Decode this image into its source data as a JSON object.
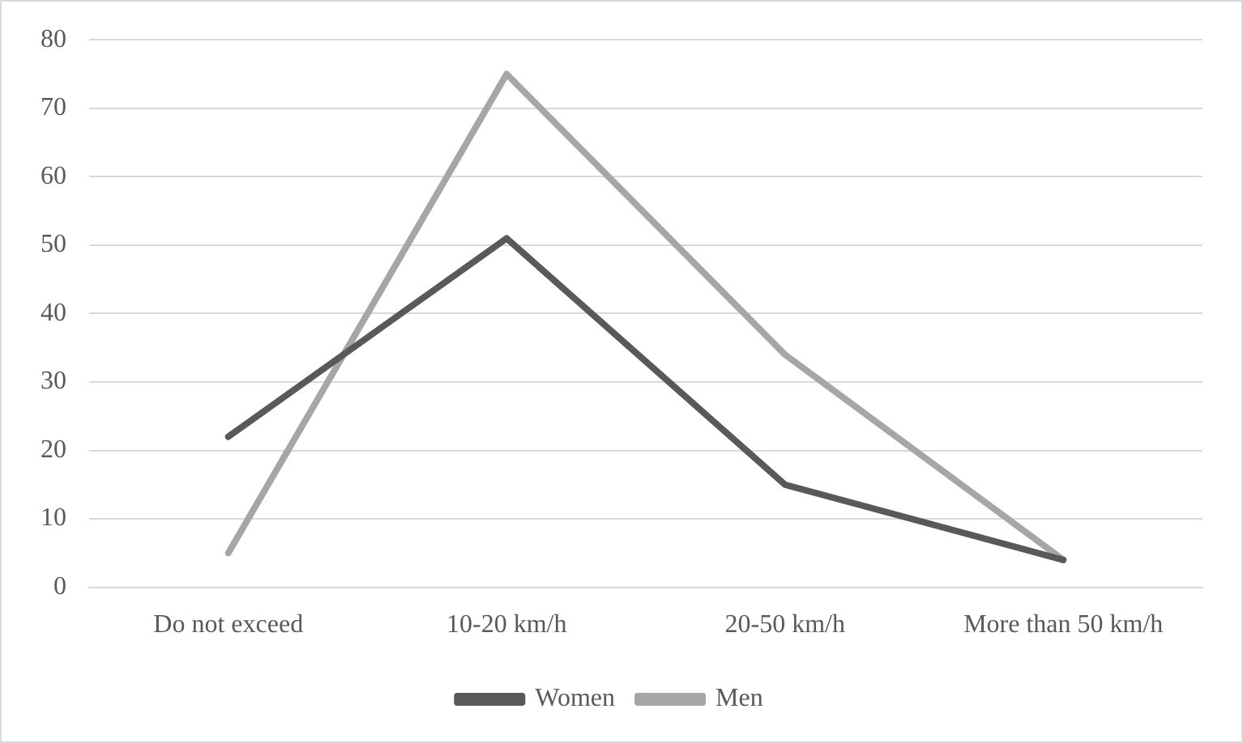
{
  "chart_data": {
    "type": "line",
    "categories": [
      "Do not exceed",
      "10-20 km/h",
      "20-50 km/h",
      "More than 50 km/h"
    ],
    "series": [
      {
        "name": "Women",
        "color": "#595959",
        "values": [
          22,
          51,
          15,
          4
        ]
      },
      {
        "name": "Men",
        "color": "#a6a6a6",
        "values": [
          5,
          75,
          34,
          4
        ]
      }
    ],
    "ylim": [
      0,
      80
    ],
    "yticks": [
      0,
      10,
      20,
      30,
      40,
      50,
      60,
      70,
      80
    ],
    "grid": "y",
    "legend": "bottom",
    "marker": "none",
    "line_style": "solid"
  }
}
